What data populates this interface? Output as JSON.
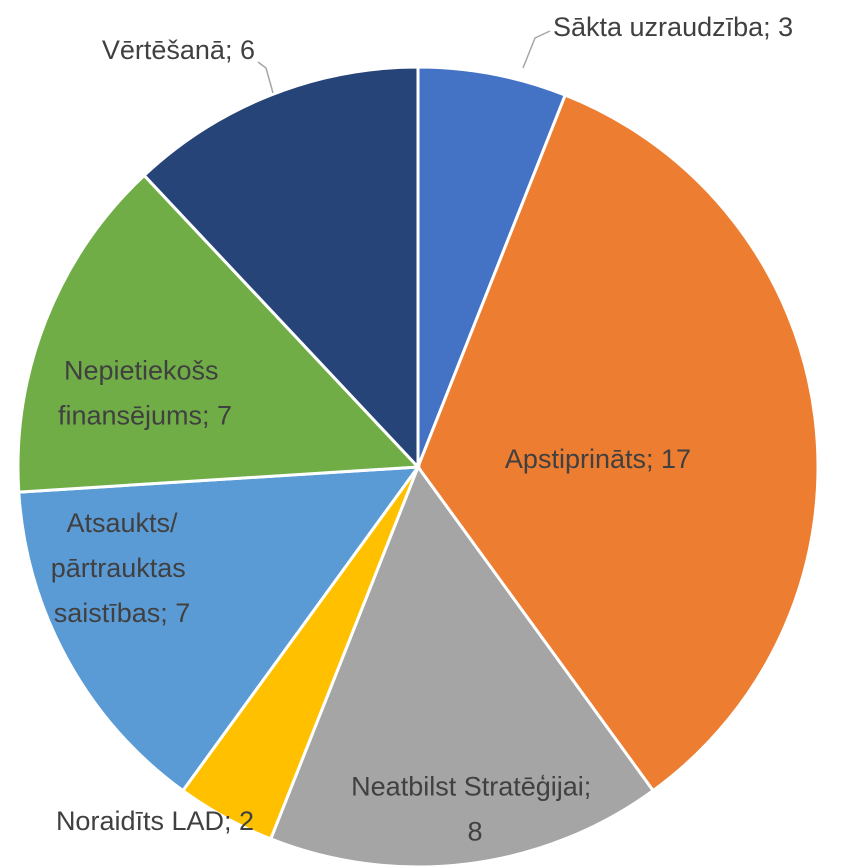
{
  "chart_data": {
    "type": "pie",
    "categories": [
      "Sākta uzraudzība",
      "Apstiprināts",
      "Neatbilst Stratēģijai",
      "Noraidīts LAD",
      "Atsaukts/pārtrauktas saistības",
      "Nepietiekošs finansējums",
      "Vērtēšanā"
    ],
    "values": [
      3,
      17,
      8,
      2,
      7,
      7,
      6
    ],
    "colors": [
      "#4472c4",
      "#ed7d31",
      "#a5a5a5",
      "#ffc000",
      "#5b9bd5",
      "#70ad47",
      "#264478"
    ],
    "label_separator": "; "
  }
}
